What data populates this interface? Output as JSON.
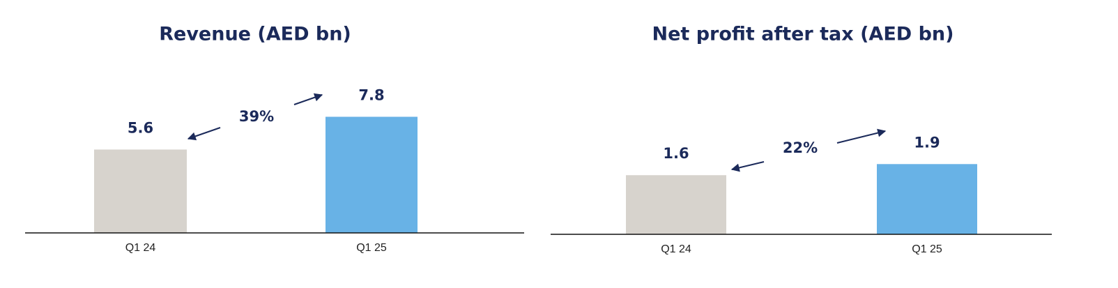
{
  "chart_data": [
    {
      "type": "bar",
      "title": "Revenue (AED bn)",
      "categories": [
        "Q1 24",
        "Q1 25"
      ],
      "values": [
        5.6,
        7.8
      ],
      "colors": [
        "#d7d3cd",
        "#68b2e6"
      ],
      "annotation": "39%"
    },
    {
      "type": "bar",
      "title": "Net profit after tax (AED bn)",
      "categories": [
        "Q1 24",
        "Q1 25"
      ],
      "values": [
        1.6,
        1.9
      ],
      "colors": [
        "#d7d3cd",
        "#68b2e6"
      ],
      "annotation": "22%"
    }
  ]
}
